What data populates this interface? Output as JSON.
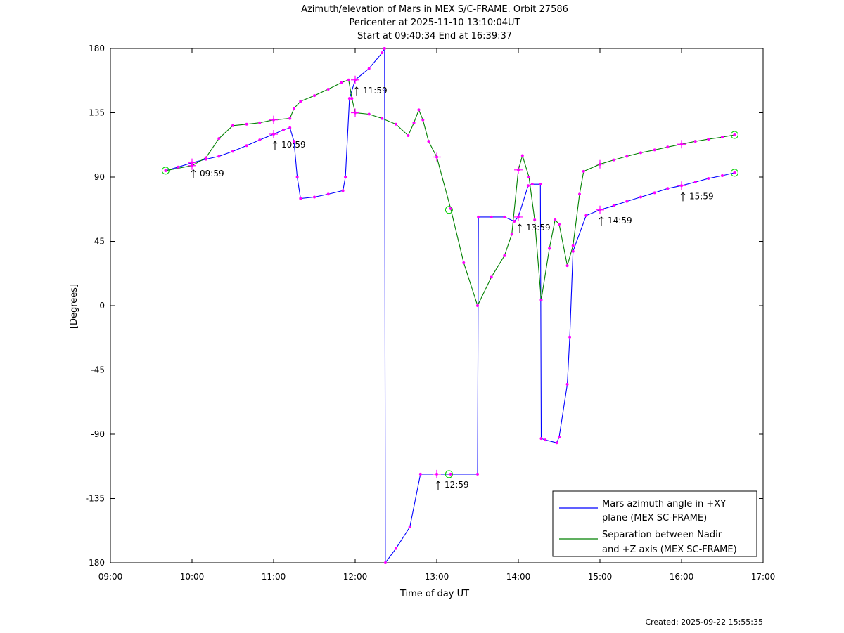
{
  "chart_data": {
    "type": "line",
    "title_lines": [
      "Azimuth/elevation of Mars in MEX S/C-FRAME.  Orbit 27586",
      "Pericenter at 2025-11-10 13:10:04UT",
      "Start at 09:40:34 End at 16:39:37"
    ],
    "xlabel": "Time of day UT",
    "ylabel": "[Degrees]",
    "xlim": [
      9.0,
      17.0
    ],
    "ylim": [
      -180,
      180
    ],
    "xticks": [
      9,
      10,
      11,
      12,
      13,
      14,
      15,
      16,
      17
    ],
    "xtick_labels": [
      "09:00",
      "10:00",
      "11:00",
      "12:00",
      "13:00",
      "14:00",
      "15:00",
      "16:00",
      "17:00"
    ],
    "yticks": [
      180,
      135,
      90,
      45,
      0,
      -45,
      -90,
      -135,
      -180
    ],
    "ytick_labels": [
      "180",
      "135",
      "90",
      "45",
      "0",
      "-45",
      "-90",
      "-135",
      "-180"
    ],
    "grid": false,
    "legend_position": "bottom-right",
    "series": [
      {
        "name_lines": [
          "Mars azimuth angle in +XY",
          "plane (MEX SC-FRAME)"
        ],
        "color": "#0000ff",
        "segments": [
          [
            [
              9.676,
              94.5
            ],
            [
              9.83,
              97
            ],
            [
              10.0,
              100
            ],
            [
              10.17,
              102.5
            ],
            [
              10.33,
              104.5
            ],
            [
              10.5,
              108
            ],
            [
              10.67,
              112
            ],
            [
              10.83,
              116
            ],
            [
              11.0,
              120
            ],
            [
              11.12,
              123
            ],
            [
              11.2,
              124.5
            ],
            [
              11.25,
              115
            ],
            [
              11.29,
              90
            ],
            [
              11.33,
              75
            ],
            [
              11.5,
              76
            ],
            [
              11.67,
              78
            ],
            [
              11.85,
              80.5
            ],
            [
              11.88,
              90
            ],
            [
              11.93,
              145
            ],
            [
              12.0,
              158
            ],
            [
              12.17,
              166
            ],
            [
              12.33,
              177
            ],
            [
              12.36,
              180
            ]
          ],
          [
            [
              12.36,
              180
            ],
            [
              12.37,
              -180
            ],
            [
              12.5,
              -170
            ],
            [
              12.67,
              -155
            ],
            [
              12.8,
              -118
            ],
            [
              13.0,
              -118
            ],
            [
              13.17,
              -118
            ],
            [
              13.5,
              -118
            ],
            [
              13.51,
              62
            ],
            [
              13.67,
              62
            ],
            [
              13.83,
              62
            ],
            [
              13.95,
              59
            ],
            [
              14.0,
              62
            ],
            [
              14.12,
              84
            ],
            [
              14.17,
              85
            ],
            [
              14.27,
              85
            ],
            [
              14.28,
              -93
            ],
            [
              14.33,
              -94
            ],
            [
              14.47,
              -96
            ],
            [
              14.5,
              -92
            ],
            [
              14.6,
              -55
            ],
            [
              14.63,
              -22
            ],
            [
              14.67,
              38
            ],
            [
              14.83,
              63
            ],
            [
              15.0,
              67
            ],
            [
              15.17,
              70
            ],
            [
              15.33,
              73
            ],
            [
              15.5,
              76
            ],
            [
              15.67,
              79
            ],
            [
              15.83,
              82
            ],
            [
              16.0,
              84
            ],
            [
              16.17,
              86.5
            ],
            [
              16.33,
              89
            ],
            [
              16.5,
              91
            ],
            [
              16.65,
              93
            ]
          ]
        ]
      },
      {
        "name_lines": [
          "Separation between Nadir",
          "and +Z axis (MEX SC-FRAME)"
        ],
        "color": "#008000",
        "segments": [
          [
            [
              9.676,
              94.5
            ],
            [
              10.0,
              98
            ],
            [
              10.17,
              103.5
            ],
            [
              10.33,
              117
            ],
            [
              10.5,
              126
            ],
            [
              10.67,
              127
            ],
            [
              10.83,
              128
            ],
            [
              11.0,
              130
            ],
            [
              11.2,
              131
            ],
            [
              11.25,
              138
            ],
            [
              11.33,
              143
            ],
            [
              11.5,
              147
            ],
            [
              11.67,
              151.5
            ],
            [
              11.83,
              156
            ],
            [
              11.92,
              158
            ],
            [
              11.96,
              145
            ],
            [
              12.0,
              135
            ],
            [
              12.17,
              134
            ],
            [
              12.33,
              131
            ],
            [
              12.5,
              127
            ],
            [
              12.65,
              119
            ],
            [
              12.72,
              128
            ],
            [
              12.78,
              137
            ],
            [
              12.83,
              130
            ],
            [
              12.9,
              115
            ],
            [
              13.0,
              104
            ],
            [
              13.17,
              68
            ],
            [
              13.33,
              30
            ],
            [
              13.5,
              0
            ],
            [
              13.67,
              20
            ],
            [
              13.83,
              35
            ],
            [
              13.92,
              50
            ],
            [
              14.0,
              95
            ],
            [
              14.05,
              105
            ],
            [
              14.13,
              90
            ],
            [
              14.2,
              60
            ],
            [
              14.28,
              4
            ],
            [
              14.38,
              40
            ],
            [
              14.45,
              60
            ],
            [
              14.5,
              57
            ],
            [
              14.6,
              28
            ],
            [
              14.67,
              42
            ],
            [
              14.75,
              78
            ],
            [
              14.8,
              94
            ],
            [
              15.0,
              99
            ],
            [
              15.17,
              102
            ],
            [
              15.33,
              104.5
            ],
            [
              15.5,
              107
            ],
            [
              15.67,
              109
            ],
            [
              15.83,
              111
            ],
            [
              16.0,
              113
            ],
            [
              16.17,
              115
            ],
            [
              16.33,
              116.5
            ],
            [
              16.5,
              118
            ],
            [
              16.65,
              119.5
            ]
          ]
        ]
      }
    ],
    "hour_markers": [
      {
        "x": 10.0,
        "y": 100
      },
      {
        "x": 11.0,
        "y": 120
      },
      {
        "x": 12.0,
        "y": 158
      },
      {
        "x": 13.0,
        "y": -118
      },
      {
        "x": 14.0,
        "y": 62
      },
      {
        "x": 15.0,
        "y": 67
      },
      {
        "x": 16.0,
        "y": 84
      },
      {
        "x": 10.0,
        "y": 98
      },
      {
        "x": 11.0,
        "y": 130
      },
      {
        "x": 12.0,
        "y": 135
      },
      {
        "x": 13.0,
        "y": 104
      },
      {
        "x": 14.0,
        "y": 95
      },
      {
        "x": 15.0,
        "y": 99
      },
      {
        "x": 16.0,
        "y": 113
      }
    ],
    "circle_markers": [
      {
        "x": 9.676,
        "y": 94.5
      },
      {
        "x": 13.15,
        "y": 67
      },
      {
        "x": 13.15,
        "y": -118
      },
      {
        "x": 16.65,
        "y": 119.5
      },
      {
        "x": 16.65,
        "y": 93
      }
    ],
    "time_annotations": [
      {
        "x": 10.0,
        "y": 94,
        "text": "09:59"
      },
      {
        "x": 11.0,
        "y": 114,
        "text": "10:59"
      },
      {
        "x": 12.0,
        "y": 152,
        "text": "11:59"
      },
      {
        "x": 13.0,
        "y": -124,
        "text": "12:59"
      },
      {
        "x": 14.0,
        "y": 56,
        "text": "13:59"
      },
      {
        "x": 15.0,
        "y": 61,
        "text": "14:59"
      },
      {
        "x": 16.0,
        "y": 78,
        "text": "15:59"
      }
    ],
    "marker_color": "#ff00ff",
    "circle_color": "#00cc00"
  },
  "footer": {
    "created": "Created: 2025-09-22 15:55:35"
  }
}
